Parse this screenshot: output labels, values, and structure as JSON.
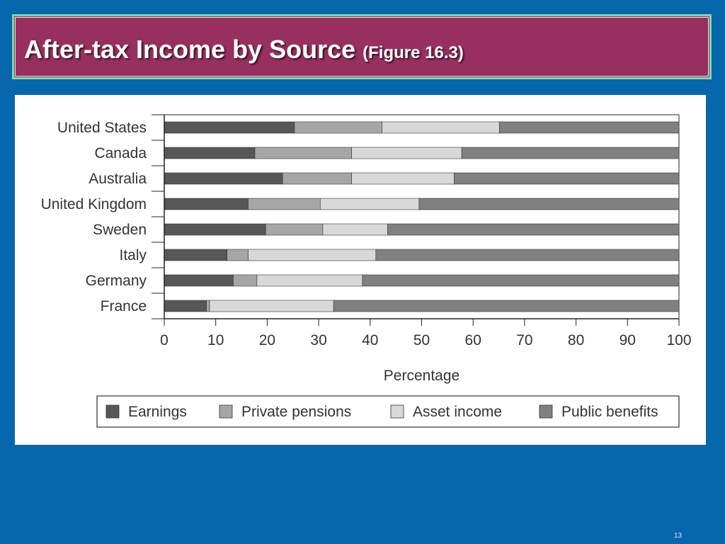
{
  "slide": {
    "title": "After-tax Income by Source",
    "figure_ref": "(Figure 16.3)",
    "page_number": "13"
  },
  "chart_data": {
    "type": "bar",
    "orientation": "horizontal",
    "stacked": true,
    "categories": [
      "United States",
      "Canada",
      "Australia",
      "United Kingdom",
      "Sweden",
      "Italy",
      "Germany",
      "France"
    ],
    "series": [
      {
        "name": "Earnings",
        "color": "#575757",
        "values": [
          25.3,
          17.6,
          23.0,
          16.3,
          19.7,
          12.2,
          13.4,
          8.2
        ]
      },
      {
        "name": "Private pensions",
        "color": "#a6a6a6",
        "values": [
          17.0,
          18.8,
          13.4,
          14.0,
          11.1,
          4.1,
          4.6,
          0.6
        ]
      },
      {
        "name": "Asset income",
        "color": "#d8d8d8",
        "values": [
          22.8,
          21.4,
          19.9,
          19.2,
          12.6,
          24.8,
          20.5,
          24.1
        ]
      },
      {
        "name": "Public benefits",
        "color": "#808080",
        "values": [
          34.9,
          42.2,
          43.7,
          50.5,
          56.6,
          58.9,
          61.5,
          67.1
        ]
      }
    ],
    "x_ticks": [
      "0",
      "10",
      "20",
      "30",
      "40",
      "50",
      "60",
      "70",
      "80",
      "90",
      "100"
    ],
    "xlabel": "Percentage",
    "ylabel": "",
    "xlim": [
      0,
      100
    ],
    "grid": false,
    "legend_position": "bottom"
  }
}
